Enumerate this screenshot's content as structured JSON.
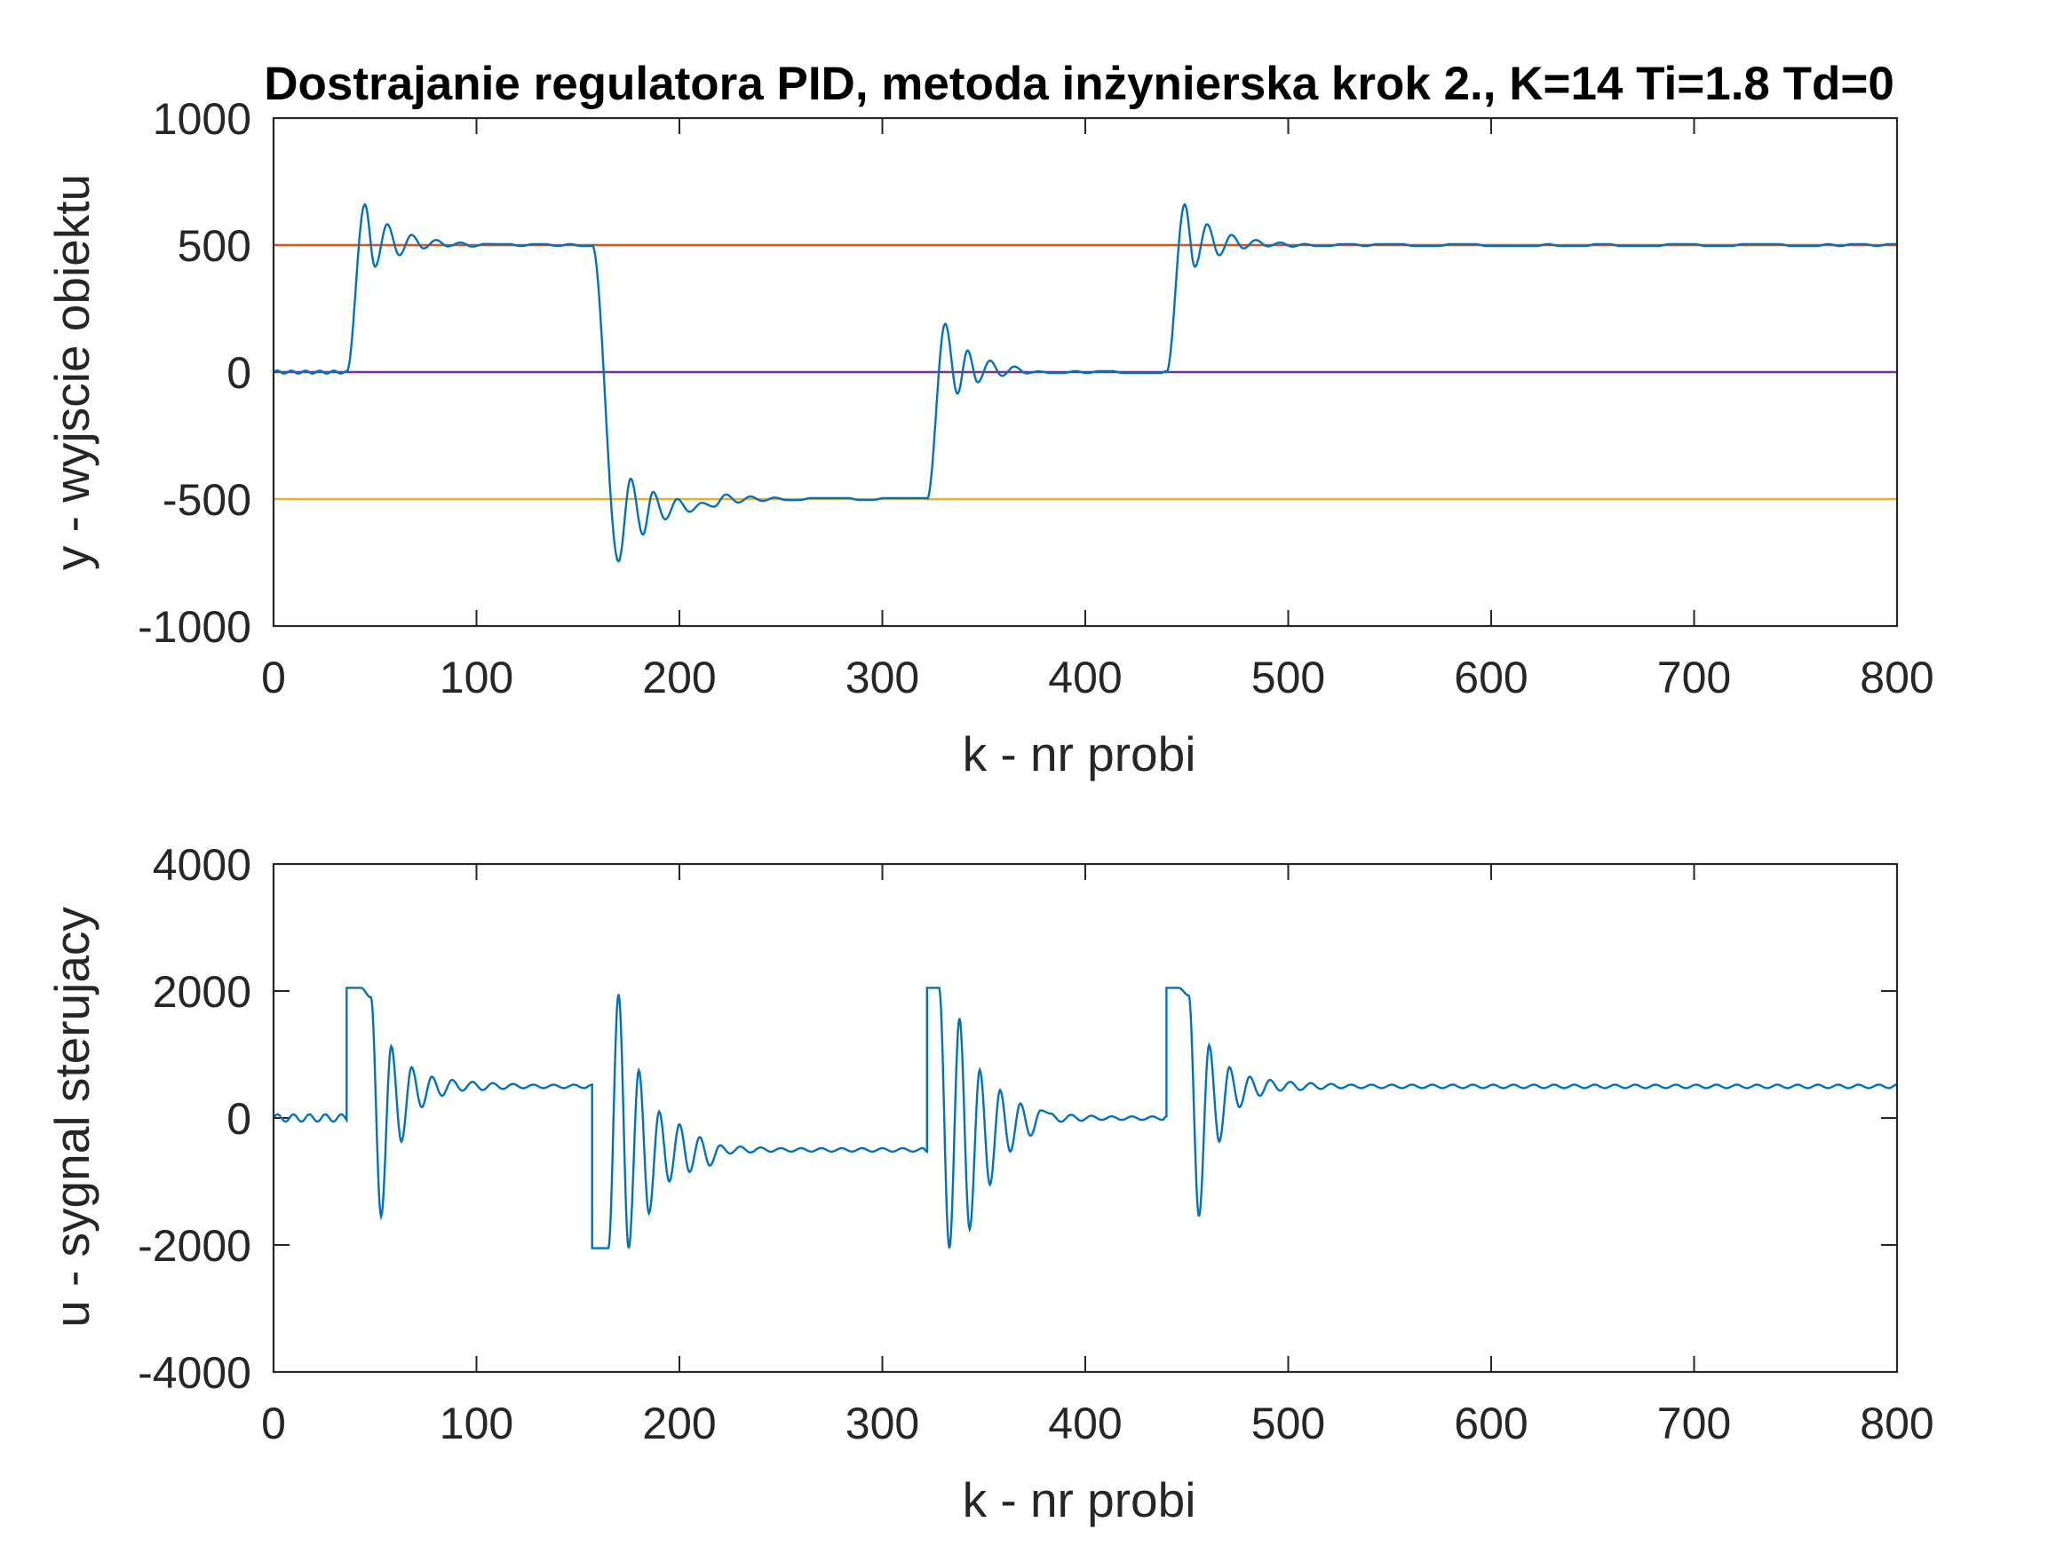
{
  "figure": {
    "title": "Dostrajanie regulatora PID, metoda inżynierska krok 2., K=14 Ti=1.8 Td=0"
  },
  "chart_data": [
    {
      "type": "line",
      "xlabel": "k - nr probi",
      "ylabel": "y - wyjscie obiektu",
      "xlim": [
        0,
        800
      ],
      "ylim": [
        -1000,
        1000
      ],
      "xticks": [
        "0",
        "100",
        "200",
        "300",
        "400",
        "500",
        "600",
        "700",
        "800"
      ],
      "yticks": [
        "-1000",
        "-500",
        "0",
        "500",
        "1000"
      ],
      "grid": false,
      "series": [
        {
          "role": "process-output",
          "color": "#0072BD",
          "segments": [
            {
              "start": 0,
              "end": 36,
              "from": 0,
              "to": 0
            },
            {
              "start": 36,
              "end": 157,
              "from": 0,
              "to": 500
            },
            {
              "start": 157,
              "end": 322,
              "from": 500,
              "to": -500
            },
            {
              "start": 322,
              "end": 440,
              "from": -500,
              "to": 0
            },
            {
              "start": 440,
              "end": 800,
              "from": 0,
              "to": 500
            }
          ],
          "peaks": [
            [
              45,
              660
            ],
            [
              50,
              415
            ],
            [
              56,
              582
            ],
            [
              62,
              460
            ],
            [
              68,
              540
            ],
            [
              74,
              487
            ],
            [
              80,
              520
            ],
            [
              86,
              495
            ],
            [
              92,
              510
            ],
            [
              170,
              -745
            ],
            [
              176,
              -420
            ],
            [
              182,
              -640
            ],
            [
              187,
              -472
            ],
            [
              193,
              -580
            ],
            [
              199,
              -500
            ],
            [
              205,
              -550
            ],
            [
              211,
              -515
            ],
            [
              217,
              -530
            ],
            [
              331,
              190
            ],
            [
              337,
              -85
            ],
            [
              342,
              85
            ],
            [
              347,
              -40
            ],
            [
              353,
              45
            ],
            [
              359,
              -15
            ],
            [
              365,
              22
            ],
            [
              371,
              -5
            ],
            [
              449,
              660
            ],
            [
              454,
              415
            ],
            [
              460,
              582
            ],
            [
              466,
              460
            ],
            [
              472,
              540
            ],
            [
              478,
              487
            ],
            [
              484,
              520
            ],
            [
              490,
              495
            ],
            [
              496,
              510
            ]
          ]
        },
        {
          "role": "reference-upper",
          "color": "#D95319",
          "x": [
            0,
            800
          ],
          "y": [
            500,
            500
          ]
        },
        {
          "role": "reference-lower",
          "color": "#EDB120",
          "x": [
            0,
            800
          ],
          "y": [
            -500,
            -500
          ]
        },
        {
          "role": "reference-zero",
          "color": "#7E2F8E",
          "x": [
            0,
            800
          ],
          "y": [
            0,
            0
          ]
        }
      ]
    },
    {
      "type": "line",
      "xlabel": "k - nr probi",
      "ylabel": "u - sygnal sterujacy",
      "xlim": [
        0,
        800
      ],
      "ylim": [
        -4000,
        4000
      ],
      "xticks": [
        "0",
        "100",
        "200",
        "300",
        "400",
        "500",
        "600",
        "700",
        "800"
      ],
      "yticks": [
        "-4000",
        "-2000",
        "0",
        "2000",
        "4000"
      ],
      "grid": false,
      "series": [
        {
          "role": "control-signal",
          "color": "#0072BD",
          "saturation": 2050,
          "events": [
            {
              "start": 36,
              "sat_end": 43,
              "base": 0,
              "target": 500,
              "sign": 1,
              "peaks": [
                1900,
                -1550,
                1130,
                -370,
                800,
                170,
                650,
                350,
                600,
                430
              ]
            },
            {
              "start": 157,
              "sat_end": 165,
              "base": 500,
              "target": -500,
              "sign": -1,
              "peaks": [
                1950,
                -2050,
                750,
                -1500,
                100,
                -1000,
                -100,
                -850,
                -300,
                -750
              ]
            },
            {
              "start": 322,
              "sat_end": 328,
              "base": -500,
              "target": 0,
              "sign": 1,
              "peaks": [
                -2050,
                1570,
                -1750,
                760,
                -1050,
                440,
                -530,
                230,
                -280,
                120
              ]
            },
            {
              "start": 440,
              "sat_end": 446,
              "base": 0,
              "target": 500,
              "sign": 1,
              "peaks": [
                1930,
                -1550,
                1150,
                -370,
                800,
                170,
                650,
                350,
                600,
                430
              ]
            }
          ]
        }
      ]
    }
  ]
}
